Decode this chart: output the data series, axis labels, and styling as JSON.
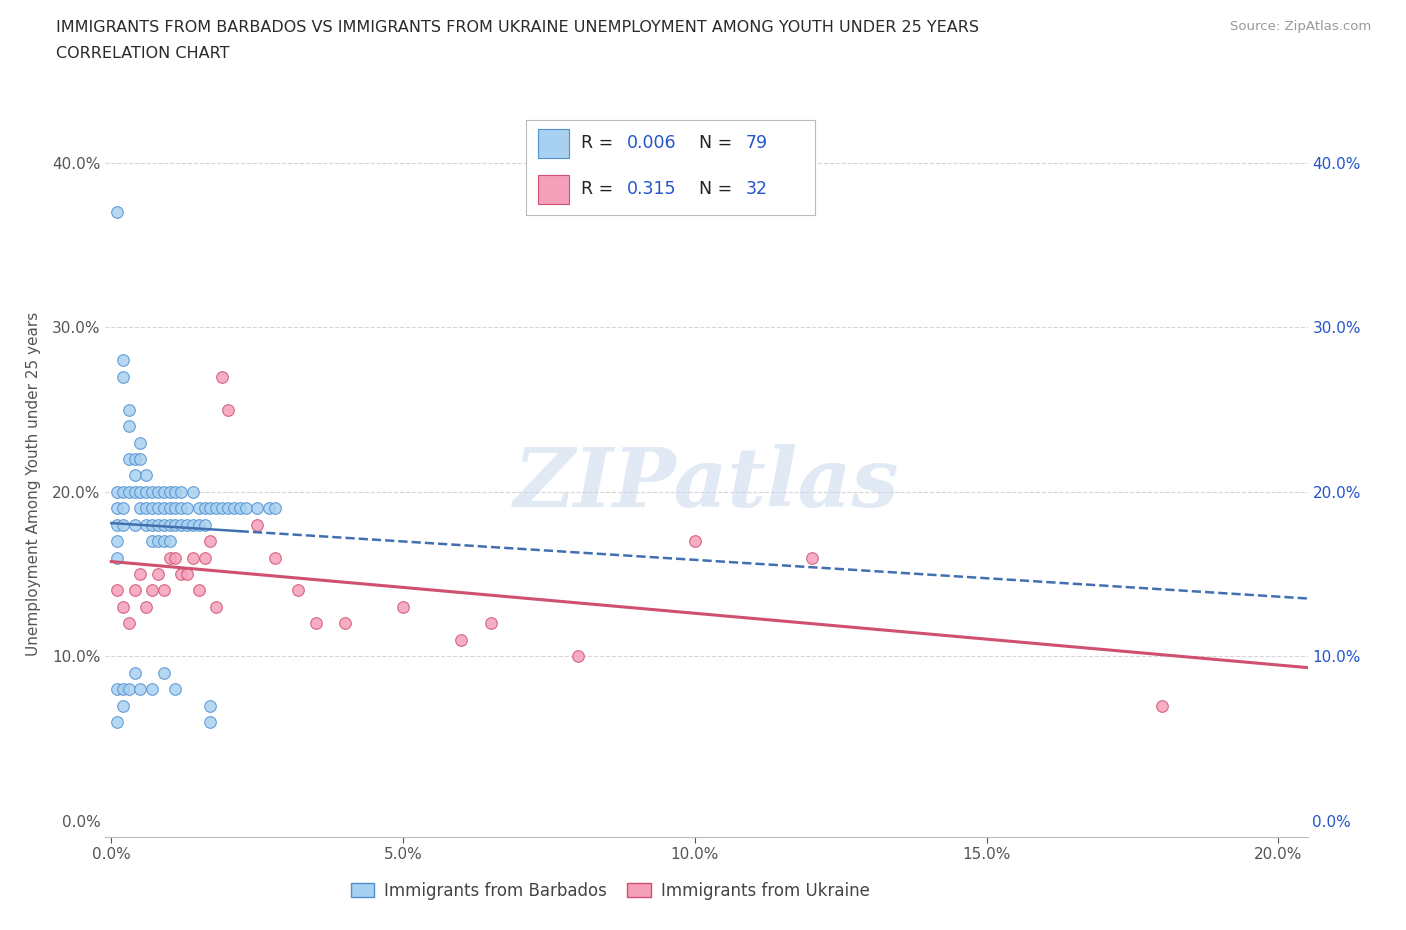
{
  "title_line1": "IMMIGRANTS FROM BARBADOS VS IMMIGRANTS FROM UKRAINE UNEMPLOYMENT AMONG YOUTH UNDER 25 YEARS",
  "title_line2": "CORRELATION CHART",
  "source": "Source: ZipAtlas.com",
  "ylabel": "Unemployment Among Youth under 25 years",
  "xlim": [
    -0.001,
    0.205
  ],
  "ylim": [
    -0.01,
    0.42
  ],
  "xticks": [
    0.0,
    0.05,
    0.1,
    0.15,
    0.2
  ],
  "yticks": [
    0.0,
    0.1,
    0.2,
    0.3,
    0.4
  ],
  "barbados_color": "#A8D0F0",
  "ukraine_color": "#F5A0BB",
  "barbados_edge": "#5090D0",
  "ukraine_edge": "#D05070",
  "trend_barbados_color": "#4070B0",
  "trend_ukraine_color": "#D05070",
  "R_barbados": 0.006,
  "N_barbados": 79,
  "R_ukraine": 0.315,
  "N_ukraine": 32,
  "watermark": "ZIPatlas",
  "watermark_color": "#C8D8EC",
  "title_color": "#2A2A2A",
  "grid_color": "#CCCCCC",
  "right_tick_color": "#2255CC",
  "left_tick_color": "#555555",
  "barbados_x": [
    0.001,
    0.001,
    0.001,
    0.001,
    0.001,
    0.001,
    0.002,
    0.002,
    0.002,
    0.002,
    0.002,
    0.003,
    0.003,
    0.003,
    0.003,
    0.004,
    0.004,
    0.004,
    0.004,
    0.005,
    0.005,
    0.005,
    0.005,
    0.006,
    0.006,
    0.006,
    0.006,
    0.007,
    0.007,
    0.007,
    0.007,
    0.008,
    0.008,
    0.008,
    0.008,
    0.009,
    0.009,
    0.009,
    0.009,
    0.01,
    0.01,
    0.01,
    0.01,
    0.011,
    0.011,
    0.011,
    0.012,
    0.012,
    0.012,
    0.013,
    0.013,
    0.014,
    0.014,
    0.015,
    0.015,
    0.016,
    0.016,
    0.017,
    0.018,
    0.019,
    0.02,
    0.021,
    0.022,
    0.023,
    0.025,
    0.027,
    0.028,
    0.001,
    0.001,
    0.002,
    0.002,
    0.003,
    0.004,
    0.005,
    0.007,
    0.009,
    0.011,
    0.017,
    0.017
  ],
  "barbados_y": [
    0.37,
    0.18,
    0.19,
    0.17,
    0.2,
    0.16,
    0.28,
    0.27,
    0.19,
    0.2,
    0.18,
    0.25,
    0.24,
    0.22,
    0.2,
    0.22,
    0.21,
    0.2,
    0.18,
    0.23,
    0.22,
    0.2,
    0.19,
    0.21,
    0.2,
    0.19,
    0.18,
    0.2,
    0.19,
    0.18,
    0.17,
    0.2,
    0.19,
    0.18,
    0.17,
    0.2,
    0.19,
    0.18,
    0.17,
    0.2,
    0.19,
    0.18,
    0.17,
    0.2,
    0.19,
    0.18,
    0.2,
    0.19,
    0.18,
    0.19,
    0.18,
    0.2,
    0.18,
    0.19,
    0.18,
    0.19,
    0.18,
    0.19,
    0.19,
    0.19,
    0.19,
    0.19,
    0.19,
    0.19,
    0.19,
    0.19,
    0.19,
    0.08,
    0.06,
    0.08,
    0.07,
    0.08,
    0.09,
    0.08,
    0.08,
    0.09,
    0.08,
    0.07,
    0.06
  ],
  "ukraine_x": [
    0.001,
    0.002,
    0.003,
    0.004,
    0.005,
    0.006,
    0.007,
    0.008,
    0.009,
    0.01,
    0.011,
    0.012,
    0.013,
    0.014,
    0.015,
    0.016,
    0.017,
    0.018,
    0.019,
    0.02,
    0.025,
    0.028,
    0.032,
    0.035,
    0.04,
    0.05,
    0.06,
    0.065,
    0.08,
    0.1,
    0.12,
    0.18
  ],
  "ukraine_y": [
    0.14,
    0.13,
    0.12,
    0.14,
    0.15,
    0.13,
    0.14,
    0.15,
    0.14,
    0.16,
    0.16,
    0.15,
    0.15,
    0.16,
    0.14,
    0.16,
    0.17,
    0.13,
    0.27,
    0.25,
    0.18,
    0.16,
    0.14,
    0.12,
    0.12,
    0.13,
    0.11,
    0.12,
    0.1,
    0.17,
    0.16,
    0.07
  ]
}
